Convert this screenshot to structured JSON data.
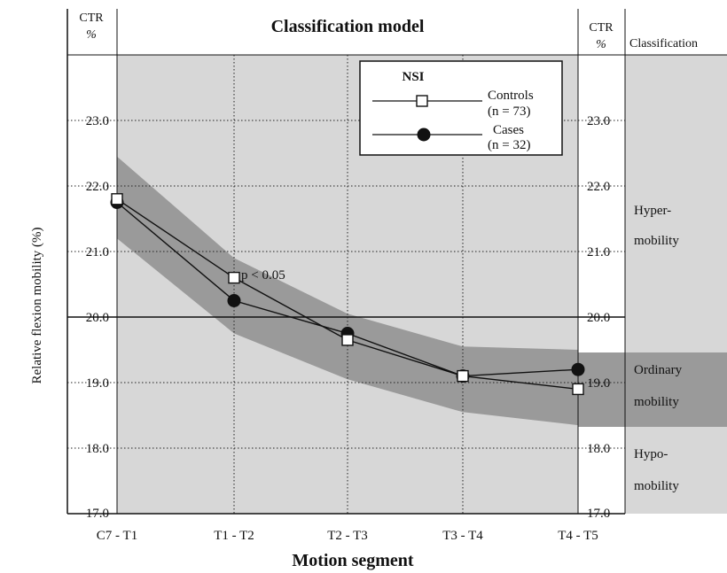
{
  "header": {
    "left_ctr_line1": "CTR",
    "left_ctr_line2": "%",
    "title": "Classification model",
    "right_ctr_line1": "CTR",
    "right_ctr_line2": "%",
    "classification": "Classification"
  },
  "legend": {
    "title": "NSI",
    "controls_label": "Controls",
    "controls_n": "(n = 73)",
    "cases_label": "Cases",
    "cases_n": "(n = 32)"
  },
  "classes": {
    "hyper_1": "Hyper-",
    "hyper_2": "mobility",
    "ordinary_1": "Ordinary",
    "ordinary_2": "mobility",
    "hypo_1": "Hypo-",
    "hypo_2": "mobility"
  },
  "annotation": "p < 0.05",
  "colors": {
    "plot_bg": "#d7d7d7",
    "band": "#9a9a9a",
    "line": "#111111"
  },
  "chart_data": {
    "type": "line",
    "title": "Classification model",
    "xlabel": "Motion segment",
    "ylabel": "Relative flexion mobility (%)",
    "categories": [
      "C7 - T1",
      "T1 - T2",
      "T2 - T3",
      "T3 - T4",
      "T4 - T5"
    ],
    "ylim": [
      17.0,
      24.0
    ],
    "yticks": [
      "17.0",
      "18.0",
      "19.0",
      "20.0",
      "21.0",
      "22.0",
      "23.0"
    ],
    "reference_line": 20.0,
    "band": {
      "upper": [
        22.45,
        20.9,
        20.05,
        19.55,
        19.5
      ],
      "lower": [
        21.2,
        19.75,
        19.05,
        18.55,
        18.35
      ]
    },
    "series": [
      {
        "name": "Controls",
        "n": "(n = 73)",
        "marker": "open-square",
        "values": [
          21.8,
          20.6,
          19.65,
          19.1,
          18.9
        ]
      },
      {
        "name": "Cases",
        "n": "(n = 32)",
        "marker": "filled-circle",
        "values": [
          21.75,
          20.25,
          19.75,
          19.1,
          19.2
        ]
      }
    ],
    "grid": true,
    "legend_position": "top-right"
  }
}
